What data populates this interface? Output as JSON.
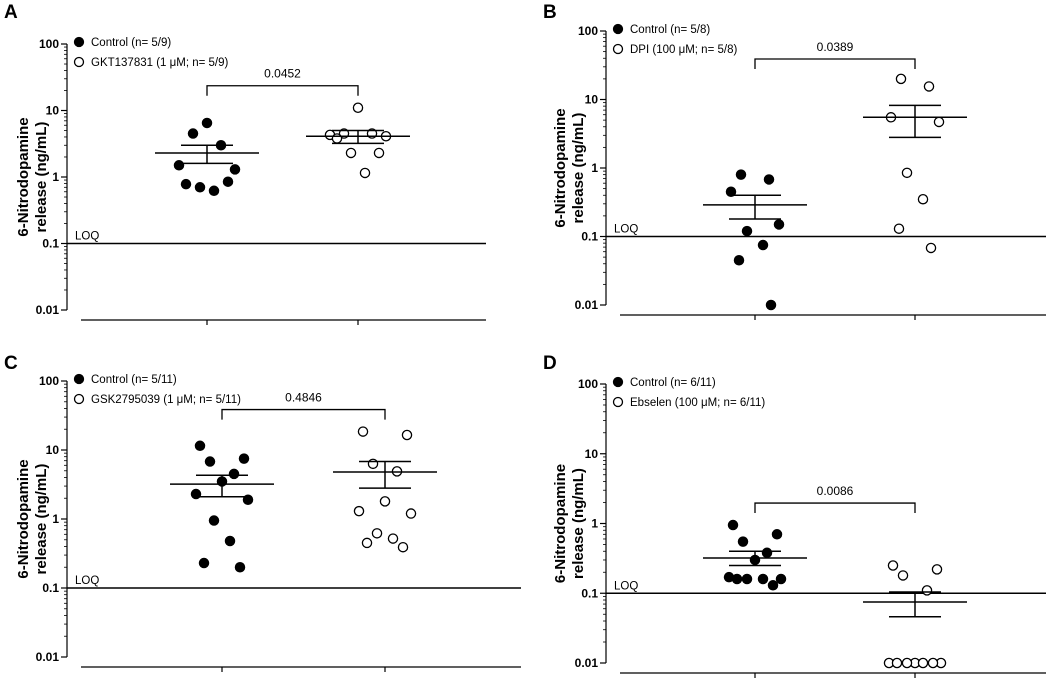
{
  "figure": {
    "colors": {
      "ink": "#000000",
      "open_fill": "#ffffff"
    }
  },
  "chart_data": [
    {
      "panel": "A",
      "type": "scatter",
      "ylabel_line1": "6-Nitrodopamine",
      "ylabel_line2": "release (ng/mL)",
      "yscale": "log",
      "ylim": [
        0.01,
        100
      ],
      "yticks": [
        "0.01",
        "0.1",
        "1",
        "10",
        "100"
      ],
      "loq": {
        "label": "LOQ",
        "value": 0.1
      },
      "legend": [
        {
          "label": "Control (n= 5/9)",
          "marker": "filled"
        },
        {
          "label": "GKT137831 (1 μM; n= 5/9)",
          "marker": "open"
        }
      ],
      "comparison": {
        "p_value": "0.0452",
        "between": [
          0,
          1
        ]
      },
      "series": [
        {
          "name": "Control (n= 5/9)",
          "marker": "filled",
          "values": [
            6.5,
            4.5,
            3.0,
            1.5,
            1.3,
            0.78,
            0.85,
            0.7,
            0.62
          ],
          "mean": 2.3,
          "sem_low": 1.6,
          "sem_high": 3.0
        },
        {
          "name": "GKT137831 (1 μM; n= 5/9)",
          "marker": "open",
          "values": [
            11.0,
            4.5,
            4.5,
            4.3,
            4.1,
            3.8,
            2.3,
            2.3,
            1.15
          ],
          "mean": 4.1,
          "sem_low": 3.2,
          "sem_high": 5.0
        }
      ]
    },
    {
      "panel": "B",
      "type": "scatter",
      "ylabel_line1": "6-Nitrodopamine",
      "ylabel_line2": "release (ng/mL)",
      "yscale": "log",
      "ylim": [
        0.01,
        100
      ],
      "yticks": [
        "0.01",
        "0.1",
        "1",
        "10",
        "100"
      ],
      "loq": {
        "label": "LOQ",
        "value": 0.1
      },
      "legend": [
        {
          "label": "Control (n= 5/8)",
          "marker": "filled"
        },
        {
          "label": "DPI (100 μM; n= 5/8)",
          "marker": "open"
        }
      ],
      "comparison": {
        "p_value": "0.0389",
        "between": [
          0,
          1
        ]
      },
      "series": [
        {
          "name": "Control (n= 5/8)",
          "marker": "filled",
          "values": [
            0.8,
            0.68,
            0.45,
            0.15,
            0.12,
            0.075,
            0.045,
            0.01
          ],
          "mean": 0.29,
          "sem_low": 0.18,
          "sem_high": 0.4
        },
        {
          "name": "DPI (100 μM; n= 5/8)",
          "marker": "open",
          "values": [
            20,
            15.5,
            5.5,
            4.7,
            0.85,
            0.35,
            0.13,
            0.068
          ],
          "mean": 5.5,
          "sem_low": 2.8,
          "sem_high": 8.2
        }
      ]
    },
    {
      "panel": "C",
      "type": "scatter",
      "ylabel_line1": "6-Nitrodopamine",
      "ylabel_line2": "release (ng/mL)",
      "yscale": "log",
      "ylim": [
        0.01,
        100
      ],
      "yticks": [
        "0.01",
        "0.1",
        "1",
        "10",
        "100"
      ],
      "loq": {
        "label": "LOQ",
        "value": 0.1
      },
      "legend": [
        {
          "label": "Control (n= 5/11)",
          "marker": "filled"
        },
        {
          "label": "GSK2795039 (1 μM; n= 5/11)",
          "marker": "open"
        }
      ],
      "comparison": {
        "p_value": "0.4846",
        "between": [
          0,
          1
        ]
      },
      "series": [
        {
          "name": "Control (n= 5/11)",
          "marker": "filled",
          "values": [
            11.5,
            7.5,
            6.8,
            4.5,
            3.5,
            2.3,
            1.9,
            0.95,
            0.48,
            0.23,
            0.2
          ],
          "mean": 3.2,
          "sem_low": 2.1,
          "sem_high": 4.3
        },
        {
          "name": "GSK2795039 (1 μM; n= 5/11)",
          "marker": "open",
          "values": [
            18.5,
            16.5,
            6.3,
            4.9,
            1.8,
            1.3,
            1.2,
            0.62,
            0.52,
            0.45,
            0.39
          ],
          "mean": 4.8,
          "sem_low": 2.8,
          "sem_high": 6.8
        }
      ]
    },
    {
      "panel": "D",
      "type": "scatter",
      "ylabel_line1": "6-Nitrodopamine",
      "ylabel_line2": "release (ng/mL)",
      "yscale": "log",
      "ylim": [
        0.01,
        100
      ],
      "yticks": [
        "0.01",
        "0.1",
        "1",
        "10",
        "100"
      ],
      "loq": {
        "label": "LOQ",
        "value": 0.1
      },
      "legend": [
        {
          "label": "Control (n= 6/11)",
          "marker": "filled"
        },
        {
          "label": "Ebselen (100 μM; n= 6/11)",
          "marker": "open"
        }
      ],
      "comparison": {
        "p_value": "0.0086",
        "between": [
          0,
          1
        ]
      },
      "series": [
        {
          "name": "Control (n= 6/11)",
          "marker": "filled",
          "values": [
            0.95,
            0.7,
            0.55,
            0.38,
            0.3,
            0.17,
            0.16,
            0.16,
            0.16,
            0.16,
            0.13
          ],
          "mean": 0.32,
          "sem_low": 0.25,
          "sem_high": 0.4
        },
        {
          "name": "Ebselen (100 μM; n= 6/11)",
          "marker": "open",
          "values": [
            0.25,
            0.22,
            0.18,
            0.11,
            0.01,
            0.01,
            0.01,
            0.01,
            0.01,
            0.01,
            0.01
          ],
          "mean": 0.075,
          "sem_low": 0.046,
          "sem_high": 0.104
        }
      ]
    }
  ]
}
